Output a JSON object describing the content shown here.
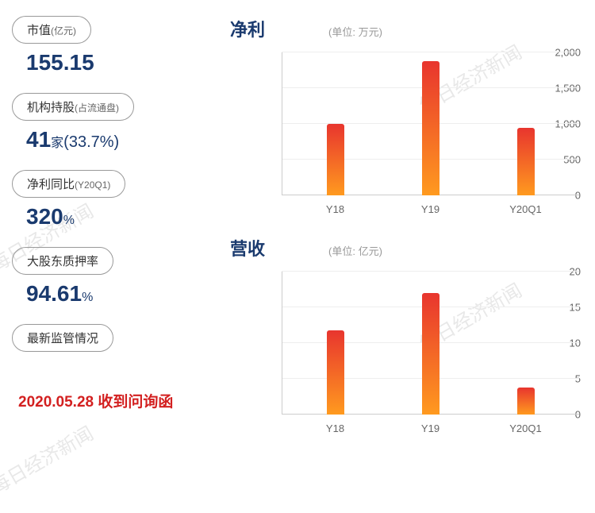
{
  "watermark_text": "每日经济新闻",
  "metrics": [
    {
      "label": "市值",
      "sub": "(亿元)",
      "value": "155.15",
      "unit": "",
      "paren": ""
    },
    {
      "label": "机构持股",
      "sub": "(占流通盘)",
      "value": "41",
      "unit": "家",
      "paren": "(33.7%)"
    },
    {
      "label": "净利同比",
      "sub": "(Y20Q1)",
      "value": "320",
      "unit": "%",
      "paren": ""
    },
    {
      "label": "大股东质押率",
      "sub": "",
      "value": "94.61",
      "unit": "%",
      "paren": ""
    },
    {
      "label": "最新监管情况",
      "sub": "",
      "value": "",
      "unit": "",
      "paren": ""
    }
  ],
  "inquiry": "2020.05.28 收到问询函",
  "charts": [
    {
      "title": "净利",
      "unit": "(单位: 万元)",
      "categories": [
        "Y18",
        "Y19",
        "Y20Q1"
      ],
      "values": [
        1000,
        1880,
        950
      ],
      "ylim": [
        0,
        2000
      ],
      "yticks": [
        0,
        500,
        1000,
        1500,
        2000
      ],
      "ytick_labels": [
        "0",
        "500",
        "1,000",
        "1,500",
        "2,000"
      ],
      "bar_gradient_top": "#e8352e",
      "bar_gradient_bottom": "#ff9a1f",
      "grid_color": "#eeeeee",
      "text_color": "#666666",
      "title_color": "#1a3a6e"
    },
    {
      "title": "营收",
      "unit": "(单位: 亿元)",
      "categories": [
        "Y18",
        "Y19",
        "Y20Q1"
      ],
      "values": [
        11.8,
        17,
        3.8
      ],
      "ylim": [
        0,
        20
      ],
      "yticks": [
        0,
        5,
        10,
        15,
        20
      ],
      "ytick_labels": [
        "0",
        "5",
        "10",
        "15",
        "20"
      ],
      "bar_gradient_top": "#e8352e",
      "bar_gradient_bottom": "#ff9a1f",
      "grid_color": "#eeeeee",
      "text_color": "#666666",
      "title_color": "#1a3a6e"
    }
  ]
}
